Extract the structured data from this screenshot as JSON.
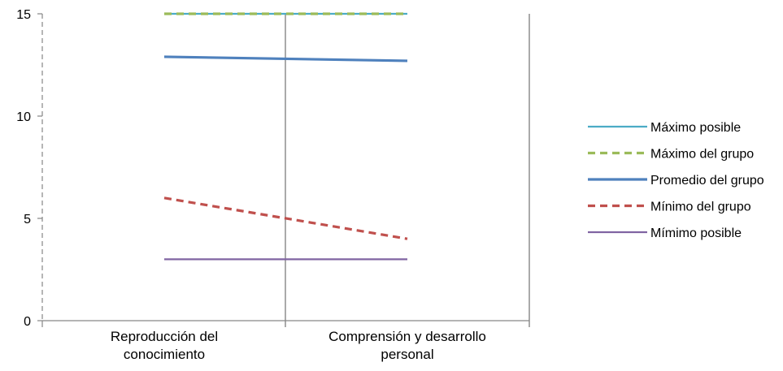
{
  "chart_data": {
    "type": "line",
    "categories": [
      "Reproducción del conocimiento",
      "Comprensión y desarrollo personal"
    ],
    "ylim": [
      0,
      15
    ],
    "yticks": [
      0,
      5,
      10,
      15
    ],
    "grid": false,
    "legend_position": "right",
    "series": [
      {
        "name": "Máximo posible",
        "values": [
          15,
          15
        ],
        "color": "#4bacc6",
        "style": "solid"
      },
      {
        "name": "Máximo del grupo",
        "values": [
          15,
          15
        ],
        "color": "#9bbb59",
        "style": "dashed"
      },
      {
        "name": "Promedio del grupo",
        "values": [
          12.9,
          12.7
        ],
        "color": "#4f81bd",
        "style": "solid"
      },
      {
        "name": "Mínimo del grupo",
        "values": [
          6,
          4
        ],
        "color": "#c0504d",
        "style": "dashed"
      },
      {
        "name": "Mímimo posible",
        "values": [
          3,
          3
        ],
        "color": "#8064a2",
        "style": "solid"
      }
    ]
  }
}
